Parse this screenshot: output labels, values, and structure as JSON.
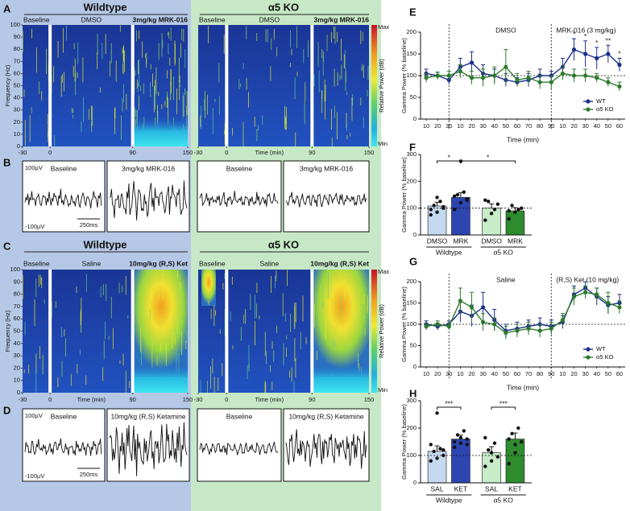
{
  "panels": {
    "A": {
      "letter": "A",
      "ylabel": "Frequency (Hz)",
      "xlim": [
        -30,
        150
      ],
      "xticks": [
        -30,
        0,
        90,
        150
      ],
      "ylim": [
        0,
        100
      ],
      "yticks": [
        0,
        10,
        20,
        30,
        40,
        50,
        60,
        70,
        80,
        90,
        100
      ],
      "groups": [
        {
          "title": "Wildtype",
          "labels": [
            "Baseline",
            "DMSO",
            "3mg/kg MRK-016"
          ]
        },
        {
          "title": "α5 KO",
          "labels": [
            "Baseline",
            "DMSO",
            "3mg/kg MRK-016"
          ],
          "xlabel": "Time (min)"
        }
      ],
      "colorbar": {
        "max": "Max",
        "min": "Min",
        "label": "Relative Power (dB)"
      }
    },
    "B": {
      "letter": "B",
      "groups": [
        {
          "boxes": [
            "Baseline",
            "3mg/kg MRK-016"
          ],
          "scale_top": "100µV",
          "scale_bottom": "-100µV",
          "scale_time": "250ms"
        },
        {
          "boxes": [
            "Baseline",
            "3mg/kg MRK-016"
          ]
        }
      ]
    },
    "C": {
      "letter": "C",
      "ylabel": "Frequency (Hz)",
      "xlim": [
        -30,
        150
      ],
      "xticks": [
        -30,
        0,
        90,
        150
      ],
      "ylim": [
        0,
        100
      ],
      "yticks": [
        0,
        10,
        20,
        30,
        40,
        50,
        60,
        70,
        80,
        90,
        100
      ],
      "groups": [
        {
          "title": "Wildtype",
          "labels": [
            "Baseline",
            "Saline",
            "10mg/kg (R,S) Ket"
          ],
          "xlabel": "Time (min)"
        },
        {
          "title": "α5 KO",
          "labels": [
            "Baseline",
            "Saline",
            "10mg/kg (R,S) Ket"
          ],
          "xlabel": "Time (min)"
        }
      ],
      "colorbar": {
        "max": "Max",
        "min": "Min",
        "label": "Relative Power (dB)"
      }
    },
    "D": {
      "letter": "D",
      "groups": [
        {
          "boxes": [
            "Baseline",
            "10mg/kg (R,S) Ketamine"
          ],
          "scale_top": "100µV",
          "scale_bottom": "-100µV",
          "scale_time": "250ms"
        },
        {
          "boxes": [
            "Baseline",
            "10mg/kg (R,S) Ketamine"
          ]
        }
      ]
    }
  },
  "chart_data": [
    {
      "label": "E",
      "type": "line",
      "ylabel": "Gamma Power (% baseline)",
      "xlabel": "Time (min)",
      "categories": [
        10,
        20,
        30,
        10,
        20,
        30,
        40,
        50,
        60,
        70,
        80,
        90,
        10,
        20,
        30,
        40,
        50,
        60
      ],
      "ylim": [
        0,
        200
      ],
      "yticks": [
        0,
        50,
        100,
        150,
        200
      ],
      "hline": 100,
      "annotations": [
        "DMSO",
        "MRK-016 (3 mg/kg)"
      ],
      "significance": [
        null,
        null,
        null,
        null,
        null,
        null,
        null,
        null,
        null,
        null,
        null,
        null,
        null,
        "*",
        "*",
        "*",
        "**",
        "*"
      ],
      "legend": "lower right",
      "series": [
        {
          "name": "WT",
          "color": "#1c2f8c",
          "values": [
            105,
            100,
            90,
            120,
            130,
            105,
            100,
            90,
            85,
            90,
            100,
            100,
            120,
            160,
            150,
            140,
            150,
            125
          ],
          "errors": [
            10,
            8,
            10,
            20,
            25,
            20,
            15,
            15,
            10,
            15,
            15,
            10,
            20,
            25,
            30,
            25,
            20,
            15
          ]
        },
        {
          "name": "α5 KO",
          "color": "#2d7a2d",
          "values": [
            95,
            100,
            100,
            110,
            95,
            95,
            100,
            120,
            90,
            95,
            85,
            85,
            105,
            100,
            100,
            95,
            85,
            75
          ],
          "errors": [
            10,
            8,
            10,
            15,
            15,
            20,
            20,
            40,
            15,
            15,
            15,
            15,
            15,
            15,
            15,
            10,
            10,
            10
          ]
        }
      ]
    },
    {
      "label": "F",
      "type": "bar",
      "ylabel": "Gamma Power (% baseline)",
      "categories": [
        "DMSO",
        "MRK",
        "DMSO",
        "MRK"
      ],
      "groups": [
        "Wildtype",
        "α5 KO"
      ],
      "values": [
        108,
        140,
        100,
        90
      ],
      "errors": [
        14,
        18,
        16,
        12
      ],
      "colors": [
        "#c5d9f0",
        "#2c45b0",
        "#c8ebc8",
        "#2e8b2e"
      ],
      "points": [
        [
          75,
          85,
          100,
          110,
          125,
          95,
          140,
          105
        ],
        [
          95,
          120,
          135,
          150,
          160,
          145,
          275,
          130
        ],
        [
          55,
          80,
          115,
          125,
          95,
          130
        ],
        [
          60,
          85,
          100,
          110,
          95,
          90
        ]
      ],
      "ylim": [
        0,
        300
      ],
      "yticks": [
        0,
        100,
        200,
        300
      ],
      "hline": 100,
      "brackets": [
        {
          "text": "*",
          "from": 0,
          "to": 1
        },
        {
          "text": "*",
          "from": 1,
          "to": 3
        }
      ]
    },
    {
      "label": "G",
      "type": "line",
      "ylabel": "Gamma Power (% baseline)",
      "xlabel": "Time (min)",
      "categories": [
        10,
        20,
        30,
        10,
        20,
        30,
        40,
        50,
        60,
        70,
        80,
        90,
        10,
        20,
        30,
        40,
        50,
        60
      ],
      "ylim": [
        0,
        200
      ],
      "yticks": [
        0,
        50,
        100,
        150,
        200
      ],
      "hline": 100,
      "annotations": [
        "Saline",
        "(R,S) Ket (10 mg/kg)"
      ],
      "legend": "lower right",
      "series": [
        {
          "name": "WT",
          "color": "#1c2f8c",
          "values": [
            100,
            95,
            100,
            130,
            120,
            140,
            110,
            85,
            90,
            95,
            100,
            95,
            105,
            170,
            185,
            165,
            145,
            150
          ],
          "errors": [
            8,
            8,
            8,
            25,
            25,
            35,
            25,
            15,
            15,
            15,
            15,
            15,
            15,
            20,
            15,
            20,
            20,
            20
          ]
        },
        {
          "name": "α5 KO",
          "color": "#2d7a2d",
          "values": [
            95,
            100,
            95,
            155,
            140,
            105,
            100,
            80,
            85,
            90,
            85,
            90,
            110,
            165,
            175,
            170,
            150,
            140
          ],
          "errors": [
            8,
            8,
            8,
            30,
            35,
            20,
            15,
            15,
            15,
            15,
            15,
            15,
            15,
            20,
            15,
            15,
            25,
            15
          ]
        }
      ]
    },
    {
      "label": "H",
      "type": "bar",
      "ylabel": "Gamma Power (% baseline)",
      "categories": [
        "SAL",
        "KET",
        "SAL",
        "KET"
      ],
      "groups": [
        "Wildtype",
        "α5 KO"
      ],
      "values": [
        115,
        160,
        110,
        160
      ],
      "errors": [
        20,
        14,
        22,
        22
      ],
      "colors": [
        "#c5d9f0",
        "#2c45b0",
        "#c8ebc8",
        "#2e8b2e"
      ],
      "points": [
        [
          80,
          90,
          100,
          115,
          125,
          140,
          255,
          120
        ],
        [
          130,
          145,
          160,
          175,
          190,
          150,
          165,
          140
        ],
        [
          60,
          80,
          95,
          120,
          145,
          165,
          110
        ],
        [
          70,
          110,
          150,
          180,
          200,
          160,
          140
        ]
      ],
      "ylim": [
        0,
        300
      ],
      "yticks": [
        0,
        100,
        200,
        300
      ],
      "hline": 100,
      "brackets": [
        {
          "text": "***",
          "from": 0,
          "to": 1
        },
        {
          "text": "***",
          "from": 2,
          "to": 3
        }
      ]
    }
  ]
}
